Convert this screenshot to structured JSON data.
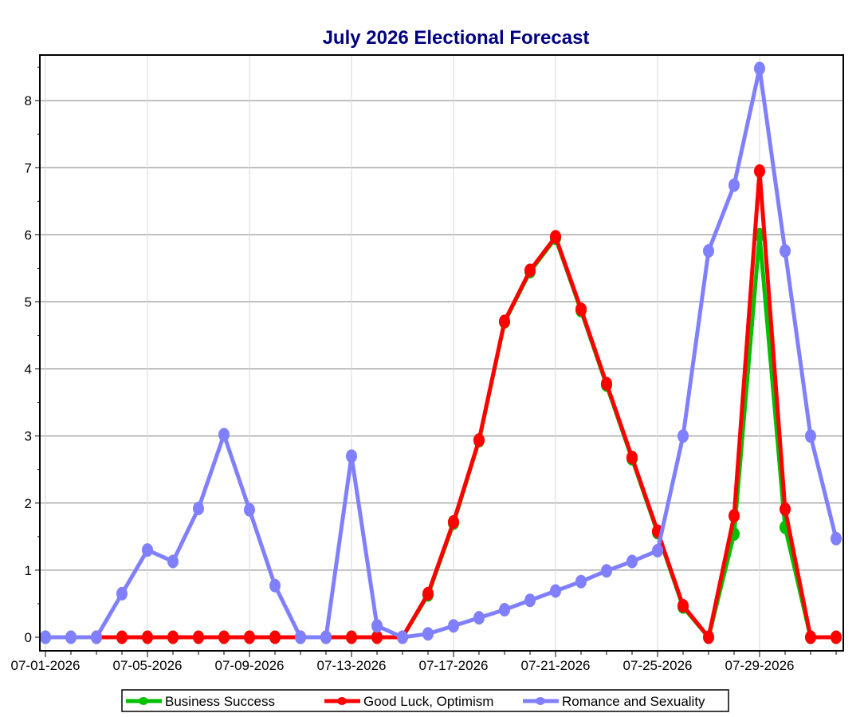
{
  "chart_data": {
    "type": "line",
    "title": "July 2026 Electional Forecast",
    "xlabel": "",
    "ylabel": "",
    "ylim": [
      -0.2,
      8.7
    ],
    "yticks": [
      0,
      1,
      2,
      3,
      4,
      5,
      6,
      7,
      8
    ],
    "x": [
      "07-01-2026",
      "07-02-2026",
      "07-03-2026",
      "07-04-2026",
      "07-05-2026",
      "07-06-2026",
      "07-07-2026",
      "07-08-2026",
      "07-09-2026",
      "07-10-2026",
      "07-11-2026",
      "07-12-2026",
      "07-13-2026",
      "07-14-2026",
      "07-15-2026",
      "07-16-2026",
      "07-17-2026",
      "07-18-2026",
      "07-19-2026",
      "07-20-2026",
      "07-21-2026",
      "07-22-2026",
      "07-23-2026",
      "07-24-2026",
      "07-25-2026",
      "07-26-2026",
      "07-27-2026",
      "07-28-2026",
      "07-29-2026",
      "07-30-2026",
      "07-31-2026",
      "08-01-2026"
    ],
    "xtick_labels": [
      "07-01-2026",
      "07-05-2026",
      "07-09-2026",
      "07-13-2026",
      "07-17-2026",
      "07-21-2026",
      "07-25-2026",
      "07-29-2026"
    ],
    "grid": true,
    "legend": "bottom",
    "series": [
      {
        "name": "Business Success",
        "color": "#00C000",
        "values": [
          0,
          0,
          0,
          0,
          0,
          0,
          0,
          0,
          0,
          0,
          0,
          0,
          0,
          0,
          0,
          0.63,
          1.7,
          2.93,
          4.7,
          5.45,
          5.95,
          4.87,
          3.76,
          2.66,
          1.56,
          0.45,
          0,
          1.54,
          6.0,
          1.64,
          0,
          0
        ]
      },
      {
        "name": "Good Luck, Optimism",
        "color": "#FF0000",
        "values": [
          null,
          null,
          0,
          0,
          0,
          0,
          0,
          0,
          0,
          0,
          0,
          0,
          0,
          0,
          0,
          0.65,
          1.72,
          2.94,
          4.71,
          5.47,
          5.97,
          4.89,
          3.78,
          2.68,
          1.58,
          0.47,
          0,
          1.81,
          6.95,
          1.91,
          0,
          0
        ]
      },
      {
        "name": "Romance and Sexuality",
        "color": "#8080FF",
        "values": [
          0,
          0,
          0,
          0.65,
          1.3,
          1.13,
          1.92,
          3.02,
          1.9,
          0.77,
          0,
          0,
          2.7,
          0.17,
          0,
          0.05,
          0.17,
          0.29,
          0.41,
          0.55,
          0.69,
          0.83,
          0.99,
          1.13,
          1.29,
          3.0,
          5.76,
          6.74,
          8.48,
          5.76,
          3.0,
          1.47
        ]
      }
    ]
  }
}
